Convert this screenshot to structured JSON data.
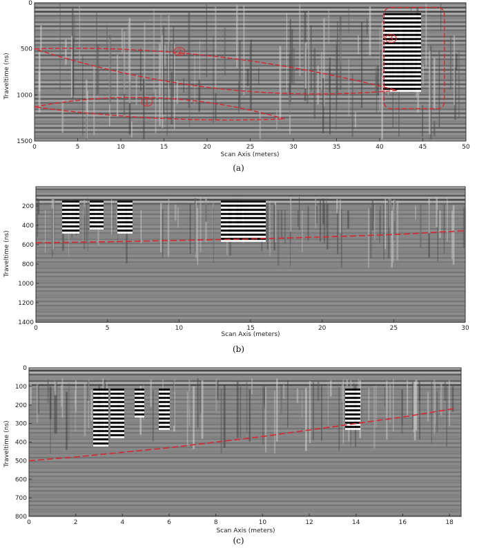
{
  "panels": [
    {
      "caption": "(a)",
      "xlabel": "Scan Axis (meters)",
      "ylabel": "Traveltime (ns)",
      "x_ticks": [
        "0",
        "5",
        "10",
        "15",
        "20",
        "25",
        "30",
        "35",
        "40",
        "45",
        "50"
      ],
      "y_ticks": [
        "0",
        "500",
        "1000",
        "1500"
      ],
      "xlim": [
        0,
        50
      ],
      "ylim": [
        0,
        1500
      ],
      "annotations": [
        {
          "label": "1",
          "shape": "lens",
          "x_start": 0,
          "x_end": 29,
          "y_center": 1130,
          "y_top": 1000,
          "y_bottom": 1260
        },
        {
          "label": "2",
          "shape": "lens",
          "x_start": 0,
          "x_end": 42,
          "y_center": 500,
          "y_top": 470,
          "y_bottom": 950
        },
        {
          "label": "3",
          "shape": "rect",
          "x_start": 40.5,
          "x_end": 47.5,
          "y_top": 50,
          "y_bottom": 1150
        }
      ],
      "annotation_color": "#d8262d"
    },
    {
      "caption": "(b)",
      "xlabel": "Scan Axis (meters)",
      "ylabel": "Traveltime (ns)",
      "x_ticks": [
        "0",
        "5",
        "10",
        "15",
        "20",
        "25",
        "30"
      ],
      "y_ticks": [
        "200",
        "400",
        "600",
        "800",
        "1000",
        "1200",
        "1400"
      ],
      "xlim": [
        0,
        30
      ],
      "ylim": [
        0,
        1400
      ],
      "interface_line": {
        "x": [
          0,
          5,
          10,
          15,
          20,
          25,
          30
        ],
        "y": [
          580,
          570,
          555,
          540,
          520,
          495,
          455
        ]
      },
      "annotation_color": "#d8262d"
    },
    {
      "caption": "(c)",
      "xlabel": "Scan Axis (meters)",
      "ylabel": "Traveltime (ns)",
      "x_ticks": [
        "0",
        "2",
        "4",
        "6",
        "8",
        "10",
        "12",
        "14",
        "16",
        "18"
      ],
      "y_ticks": [
        "0",
        "100",
        "200",
        "300",
        "400",
        "500",
        "600",
        "700",
        "800"
      ],
      "xlim": [
        0,
        18.5
      ],
      "ylim": [
        0,
        800
      ],
      "interface_line": {
        "x": [
          0,
          2,
          4,
          6,
          8,
          10,
          12,
          14,
          16,
          18.2
        ],
        "y": [
          500,
          480,
          455,
          430,
          400,
          370,
          335,
          300,
          265,
          220
        ]
      },
      "annotation_color": "#d8262d"
    }
  ]
}
